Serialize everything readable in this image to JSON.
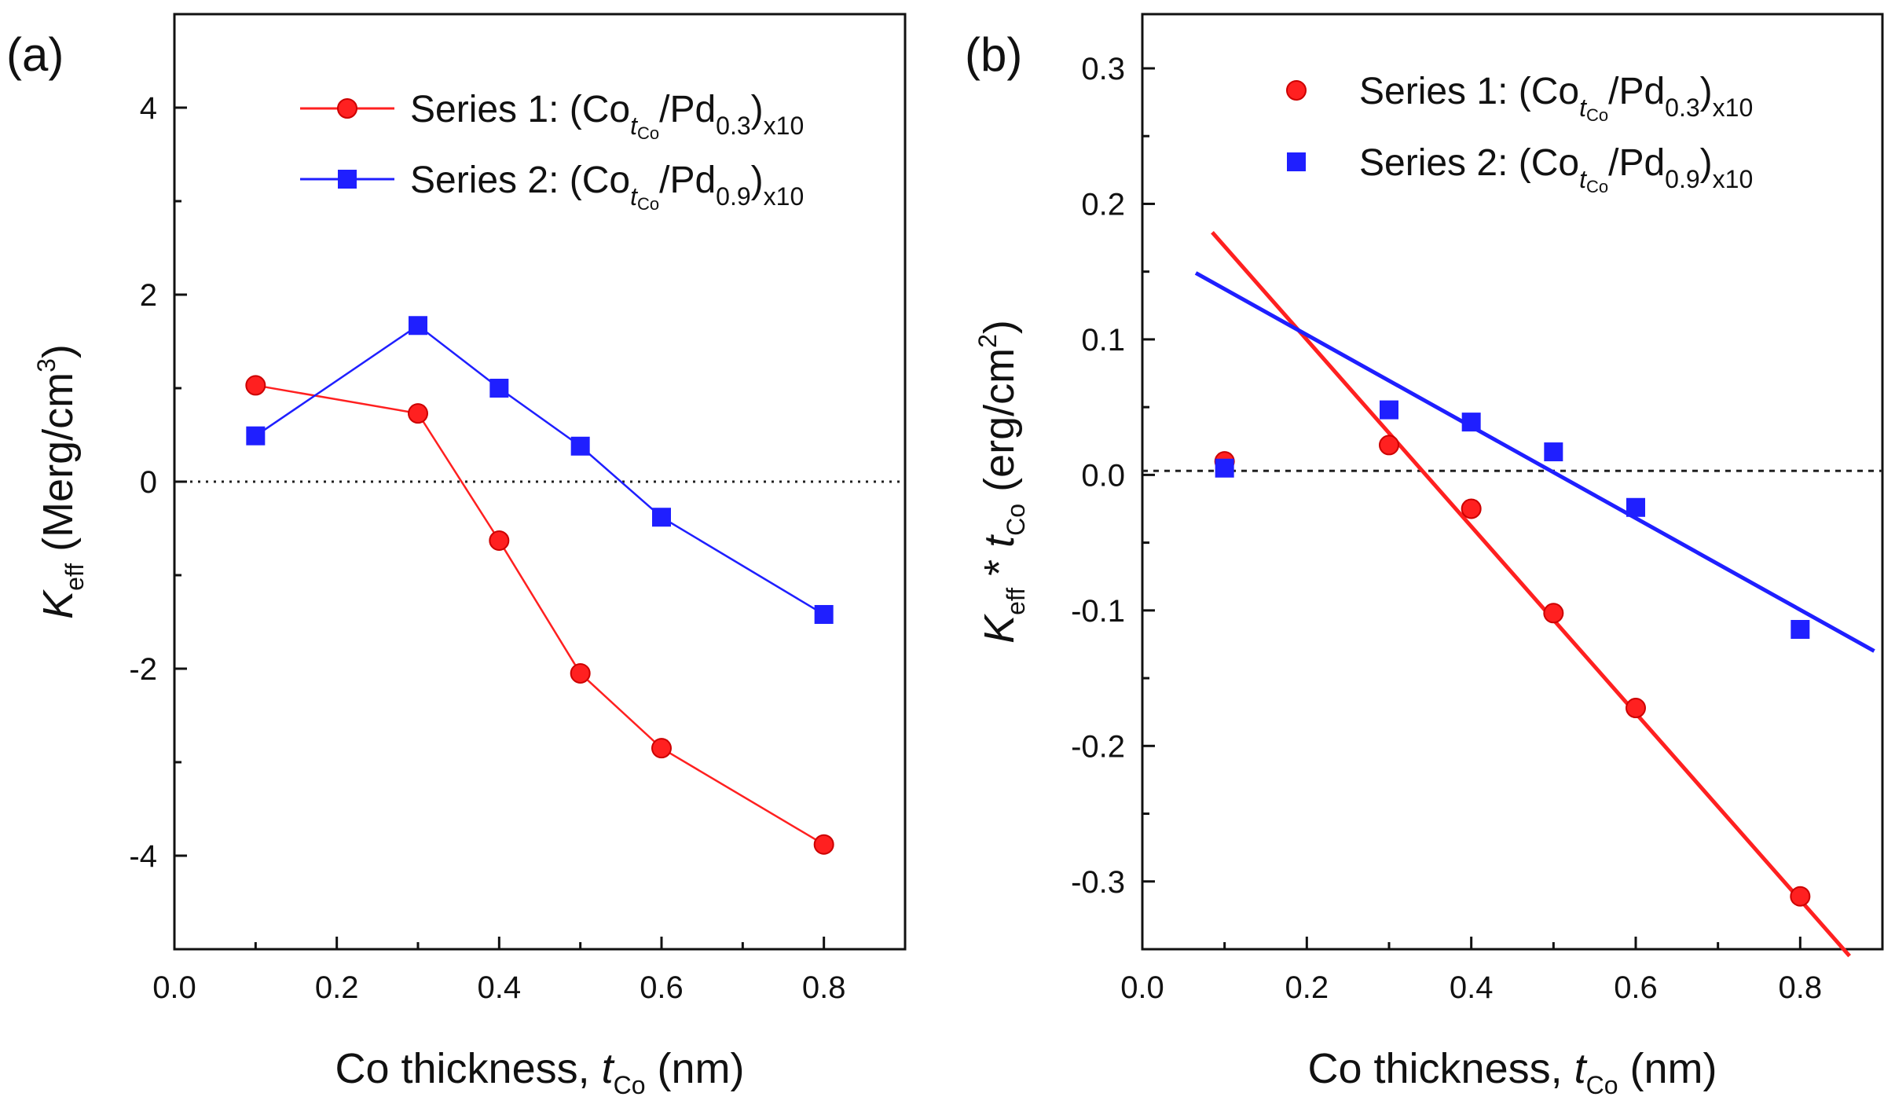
{
  "chart_data": [
    {
      "panel_label": "(a)",
      "type": "line",
      "x": [
        0.1,
        0.3,
        0.4,
        0.5,
        0.6,
        0.8
      ],
      "xlim": [
        0.0,
        0.9
      ],
      "ylim": [
        -5,
        5
      ],
      "xticks": [
        "0.0",
        "0.2",
        "0.4",
        "0.6",
        "0.8"
      ],
      "yticks": [
        "4",
        "2",
        "0",
        "-2",
        "-4"
      ],
      "xlabel": {
        "main": "Co thickness, ",
        "var": "t",
        "sub": "Co",
        "unit": " (nm)"
      },
      "ylabel": {
        "var": "K",
        "sub": "eff",
        "main": " (Merg/cm",
        "sup": "3",
        "close": ")"
      },
      "reference_line": {
        "y": 0,
        "style": "dotted"
      },
      "series": [
        {
          "name": "Series 1: (Co",
          "name_sub": "t",
          "name_sub2": "Co",
          "name_mid": "/Pd",
          "name_mid_sub": "0.3",
          "name_close": ")",
          "name_close_sub": "x10",
          "color": "#ff2020",
          "marker": "circle",
          "values": [
            1.03,
            0.73,
            -0.63,
            -2.05,
            -2.85,
            -3.88
          ]
        },
        {
          "name": "Series 2: (Co",
          "name_sub": "t",
          "name_sub2": "Co",
          "name_mid": "/Pd",
          "name_mid_sub": "0.9",
          "name_close": ")",
          "name_close_sub": "x10",
          "color": "#1f1fff",
          "marker": "square",
          "values": [
            0.49,
            1.67,
            1.0,
            0.38,
            -0.38,
            -1.42
          ]
        }
      ]
    },
    {
      "panel_label": "(b)",
      "type": "scatter",
      "x": [
        0.1,
        0.3,
        0.4,
        0.5,
        0.6,
        0.8
      ],
      "xlim": [
        0.0,
        0.9
      ],
      "ylim": [
        -0.35,
        0.34
      ],
      "xticks": [
        "0.0",
        "0.2",
        "0.4",
        "0.6",
        "0.8"
      ],
      "yticks": [
        "0.3",
        "0.2",
        "0.1",
        "0.0",
        "-0.1",
        "-0.2",
        "-0.3"
      ],
      "xlabel": {
        "main": "Co thickness, ",
        "var": "t",
        "sub": "Co",
        "unit": " (nm)"
      },
      "ylabel": {
        "var": "K",
        "sub": "eff",
        "main": " * ",
        "var2": "t",
        "sub2": "Co",
        "unit": " (erg/cm",
        "sup": "2",
        "close": ")"
      },
      "reference_line": {
        "y": 0.003,
        "style": "dashed"
      },
      "series": [
        {
          "name": "Series 1: (Co",
          "name_sub": "t",
          "name_sub2": "Co",
          "name_mid": "/Pd",
          "name_mid_sub": "0.3",
          "name_close": ")",
          "name_close_sub": "x10",
          "color": "#ff2020",
          "marker": "circle",
          "values": [
            0.01,
            0.022,
            -0.025,
            -0.102,
            -0.172,
            -0.311
          ],
          "fit": {
            "x": [
              0.085,
              0.86
            ],
            "y": [
              0.179,
              -0.355
            ]
          }
        },
        {
          "name": "Series 2: (Co",
          "name_sub": "t",
          "name_sub2": "Co",
          "name_mid": "/Pd",
          "name_mid_sub": "0.9",
          "name_close": ")",
          "name_close_sub": "x10",
          "color": "#1f1fff",
          "marker": "square",
          "values": [
            0.005,
            0.048,
            0.039,
            0.017,
            -0.024,
            -0.114
          ],
          "fit": {
            "x": [
              0.065,
              0.89
            ],
            "y": [
              0.149,
              -0.13
            ]
          }
        }
      ]
    }
  ]
}
